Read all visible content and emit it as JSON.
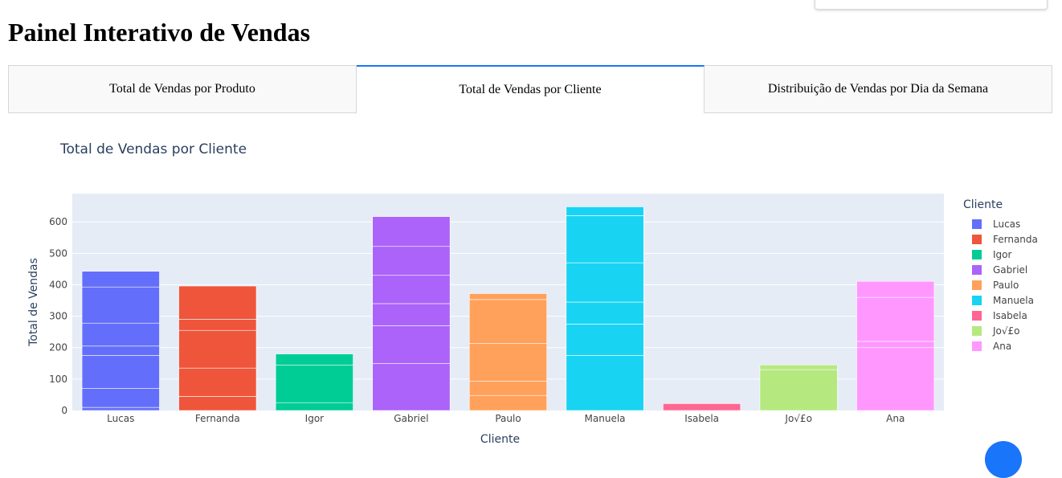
{
  "page": {
    "title": "Painel Interativo de Vendas"
  },
  "tabs": [
    {
      "label": "Total de Vendas por Produto",
      "selected": false
    },
    {
      "label": "Total de Vendas por Cliente",
      "selected": true
    },
    {
      "label": "Distribuição de Vendas por Dia da Semana",
      "selected": false
    }
  ],
  "colors": {
    "plot_bg": "#e5ecf6",
    "tab_accent": "#1975fa",
    "axis_text": "#444444",
    "title_text": "#2a3f5f"
  },
  "chart_data": {
    "type": "bar",
    "title": "Total de Vendas por Cliente",
    "xlabel": "Cliente",
    "ylabel": "Total de Vendas",
    "ylim": [
      0,
      690
    ],
    "yticks": [
      0,
      100,
      200,
      300,
      400,
      500,
      600
    ],
    "grid": true,
    "stacked_segments": true,
    "legend": {
      "title": "Cliente",
      "placement": "right"
    },
    "categories": [
      "Lucas",
      "Fernanda",
      "Igor",
      "Gabriel",
      "Paulo",
      "Manuela",
      "Isabela",
      "Jo√£o",
      "Ana"
    ],
    "series": [
      {
        "name": "Lucas",
        "color": "#636efa",
        "total": 443,
        "segments": [
          10,
          60,
          105,
          30,
          73,
          115,
          50
        ]
      },
      {
        "name": "Fernanda",
        "color": "#ef553b",
        "total": 396,
        "segments": [
          45,
          90,
          120,
          35,
          106
        ]
      },
      {
        "name": "Igor",
        "color": "#00cc96",
        "total": 180,
        "segments": [
          25,
          120,
          35
        ]
      },
      {
        "name": "Gabriel",
        "color": "#ab63fa",
        "total": 617,
        "segments": [
          150,
          120,
          70,
          90,
          92,
          95
        ]
      },
      {
        "name": "Paulo",
        "color": "#ffa15a",
        "total": 372,
        "segments": [
          48,
          45,
          120,
          140,
          19
        ]
      },
      {
        "name": "Manuela",
        "color": "#19d3f3",
        "total": 648,
        "segments": [
          175,
          100,
          70,
          125,
          150,
          28
        ]
      },
      {
        "name": "Isabela",
        "color": "#ff6692",
        "total": 22,
        "segments": [
          22
        ]
      },
      {
        "name": "Jo√£o",
        "color": "#b6e880",
        "total": 145,
        "segments": [
          130,
          15
        ]
      },
      {
        "name": "Ana",
        "color": "#ff97ff",
        "total": 411,
        "segments": [
          200,
          20,
          140,
          51
        ]
      }
    ]
  }
}
